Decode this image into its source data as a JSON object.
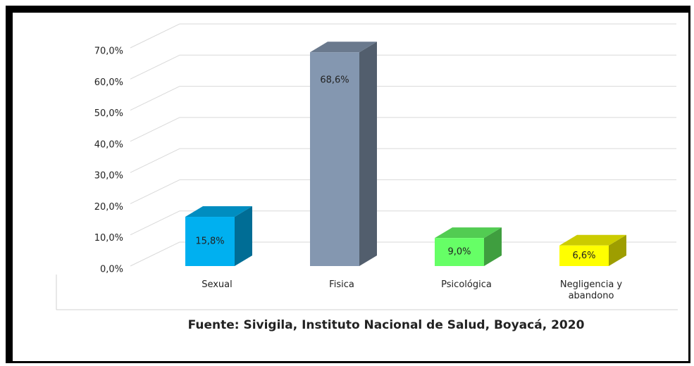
{
  "chart_data": {
    "type": "bar3d",
    "categories": [
      "Sexual",
      "Fisica",
      "Psicológica",
      "Negligencia y abandono"
    ],
    "values": [
      15.8,
      68.6,
      9.0,
      6.6
    ],
    "value_labels": [
      "15,8%",
      "68,6%",
      "9,0%",
      "6,6%"
    ],
    "colors": [
      "#00b0f0",
      "#8497b0",
      "#66ff66",
      "#ffff00"
    ],
    "ylim": [
      0,
      70
    ],
    "yticks": [
      {
        "value": 0,
        "label": "0,0%"
      },
      {
        "value": 10,
        "label": "10,0%"
      },
      {
        "value": 20,
        "label": "20,0%"
      },
      {
        "value": 30,
        "label": "30,0%"
      },
      {
        "value": 40,
        "label": "40,0%"
      },
      {
        "value": 50,
        "label": "50,0%"
      },
      {
        "value": 60,
        "label": "60,0%"
      },
      {
        "value": 70,
        "label": "70,0%"
      }
    ],
    "grid": true,
    "source": "Fuente: Sivigila, Instituto Nacional de Salud, Boyacá, 2020"
  }
}
